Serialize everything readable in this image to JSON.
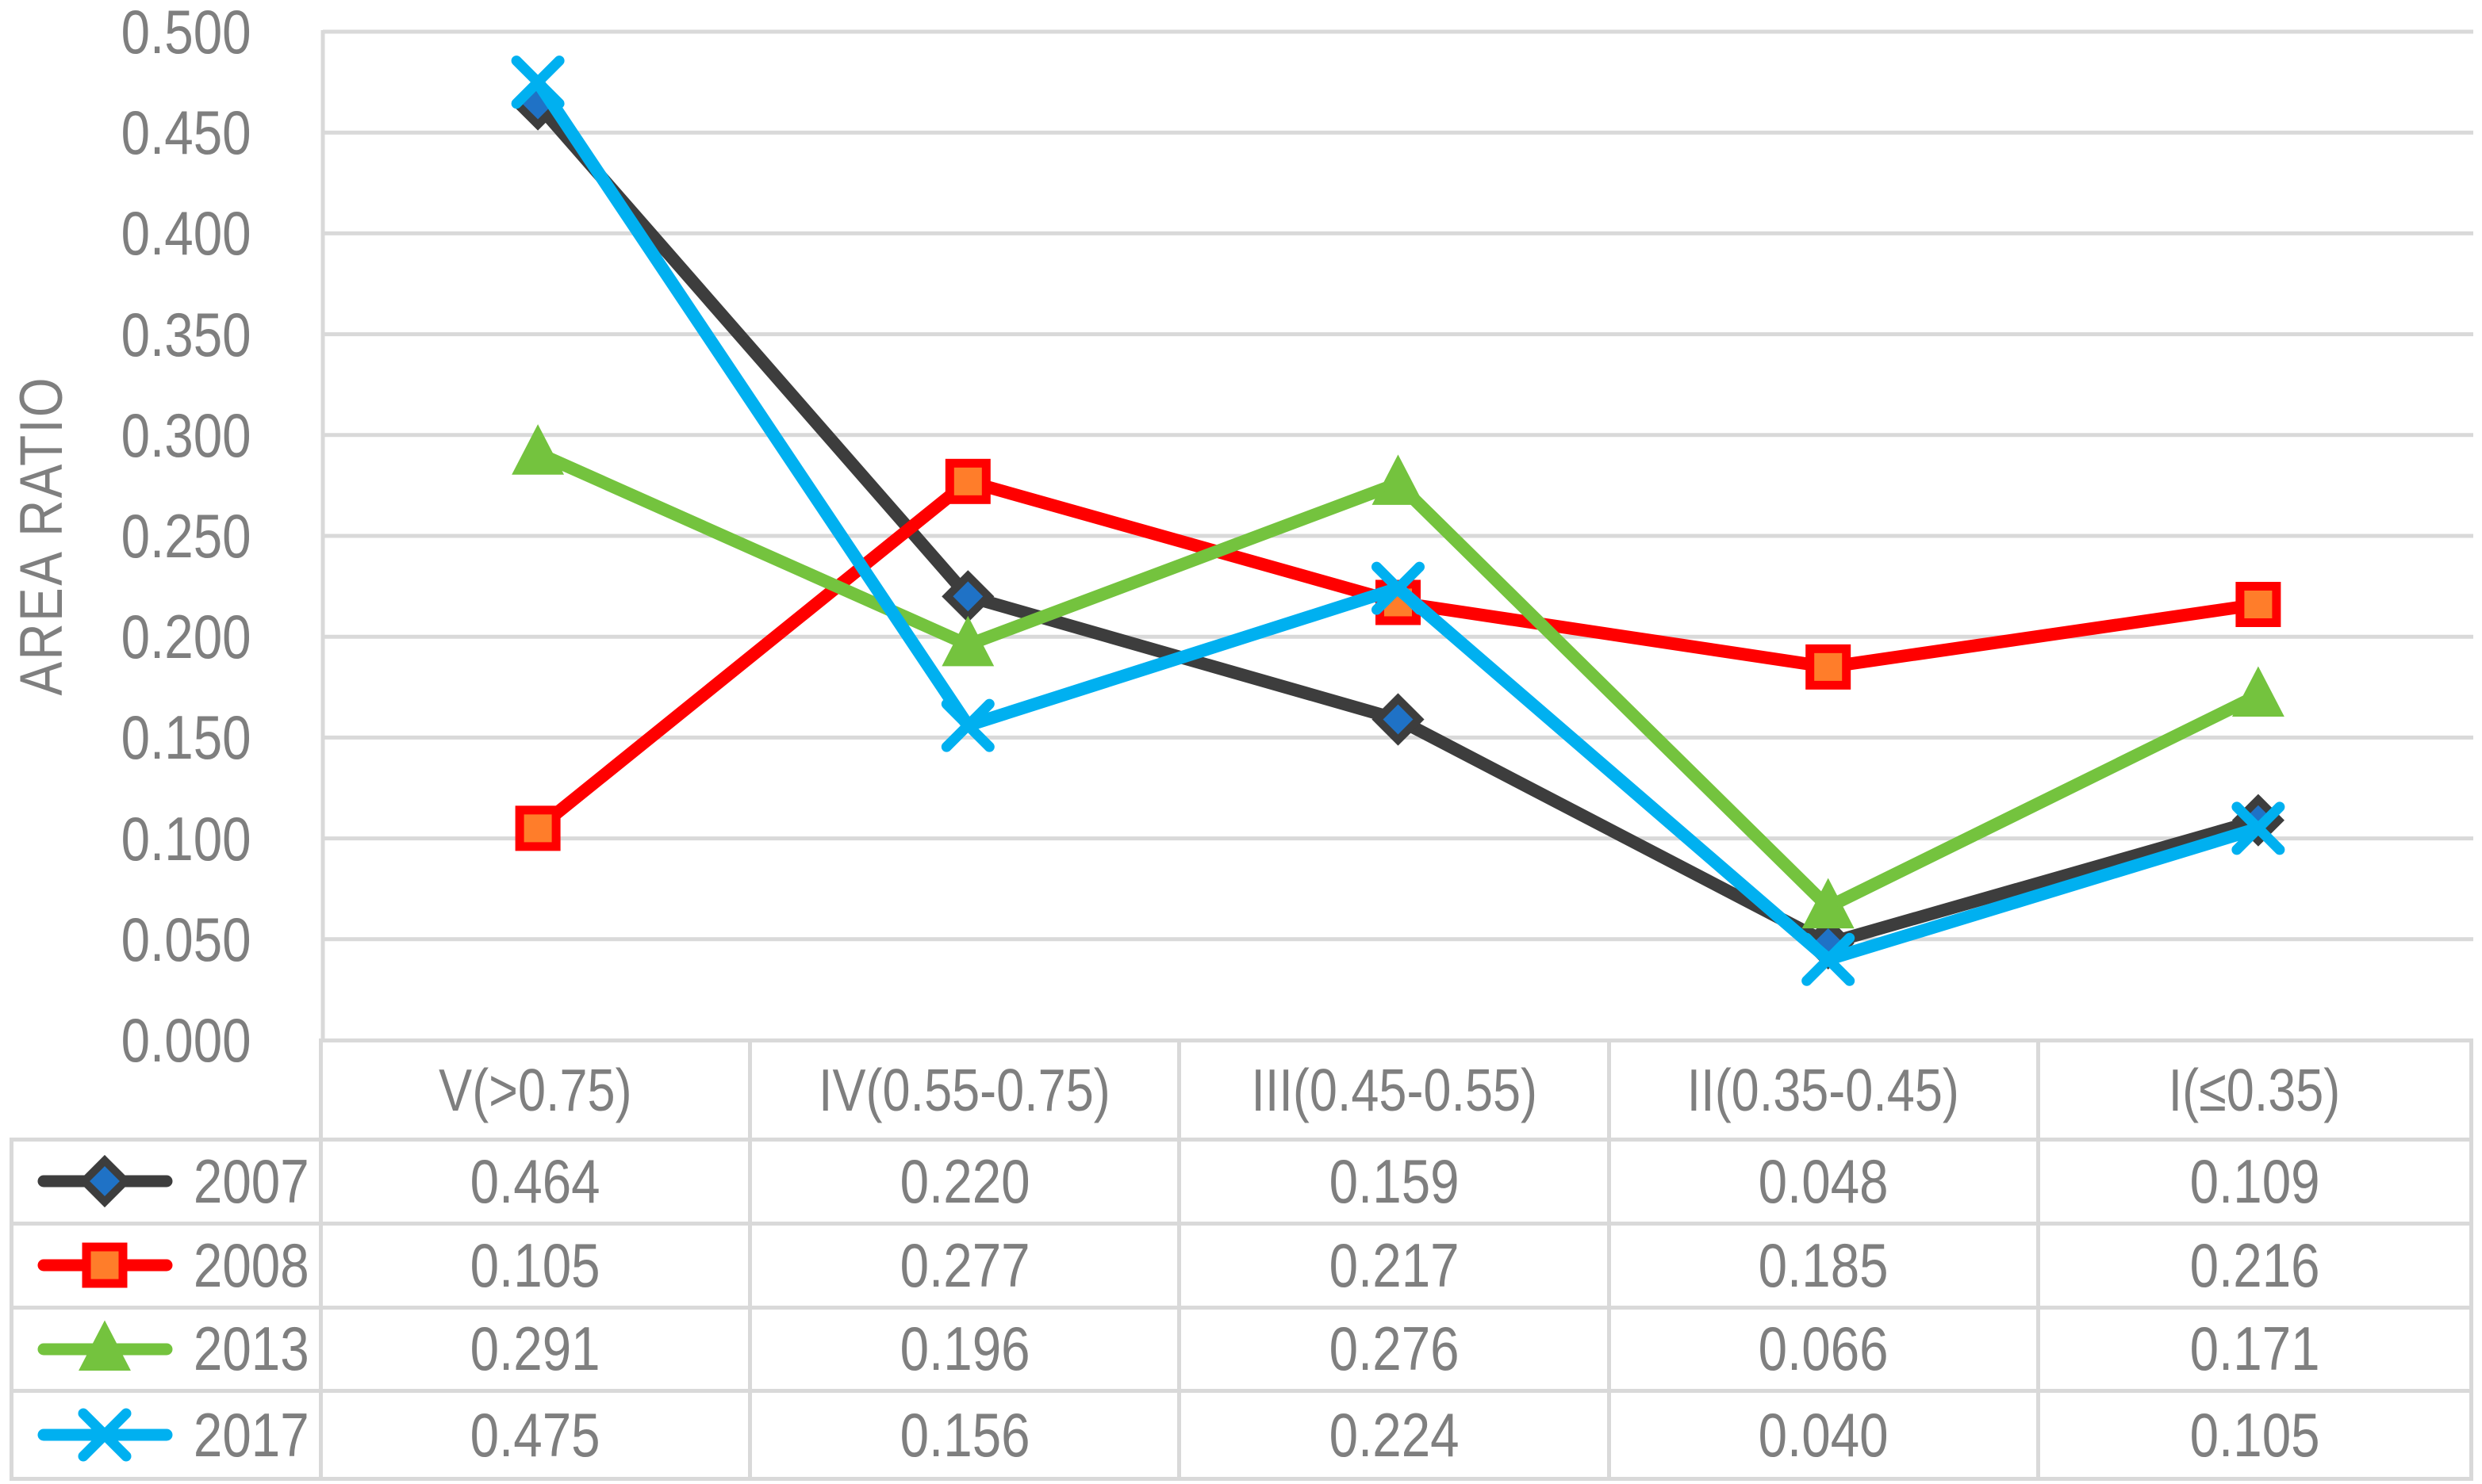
{
  "chart_data": {
    "type": "line",
    "title": "",
    "xlabel": "",
    "ylabel": "AREA RATIO",
    "categories": [
      "V(>0.75)",
      "IV(0.55-0.75)",
      "III(0.45-0.55)",
      "II(0.35-0.45)",
      "I(≤0.35)"
    ],
    "series": [
      {
        "name": "2007",
        "values": [
          0.464,
          0.22,
          0.159,
          0.048,
          0.109
        ],
        "color": "#3D3D3D",
        "marker": "diamond",
        "marker_fill": "#1F72C6",
        "marker_stroke": "#3D3D3D"
      },
      {
        "name": "2008",
        "values": [
          0.105,
          0.277,
          0.217,
          0.185,
          0.216
        ],
        "color": "#FF0000",
        "marker": "square",
        "marker_fill": "#FF7D2A",
        "marker_stroke": "#FF0000"
      },
      {
        "name": "2013",
        "values": [
          0.291,
          0.196,
          0.276,
          0.066,
          0.171
        ],
        "color": "#74C33E",
        "marker": "triangle",
        "marker_fill": "#74C33E",
        "marker_stroke": "#74C33E"
      },
      {
        "name": "2017",
        "values": [
          0.475,
          0.156,
          0.224,
          0.04,
          0.105
        ],
        "color": "#00B0F0",
        "marker": "x",
        "marker_fill": "#00B0F0",
        "marker_stroke": "#00B0F0"
      }
    ],
    "ylim": [
      0,
      0.5
    ],
    "ytick_step": 0.05,
    "yticks": [
      "0.500",
      "0.450",
      "0.400",
      "0.350",
      "0.300",
      "0.250",
      "0.200",
      "0.150",
      "0.100",
      "0.050",
      "0.000"
    ],
    "grid": true,
    "legend_position": "data-table-left-column",
    "value_format_decimals": 3,
    "colors": {
      "gridline": "#D9D9D9",
      "table_border": "#D9D9D9",
      "text": "#7F7F7F",
      "background": "#FFFFFF"
    }
  }
}
